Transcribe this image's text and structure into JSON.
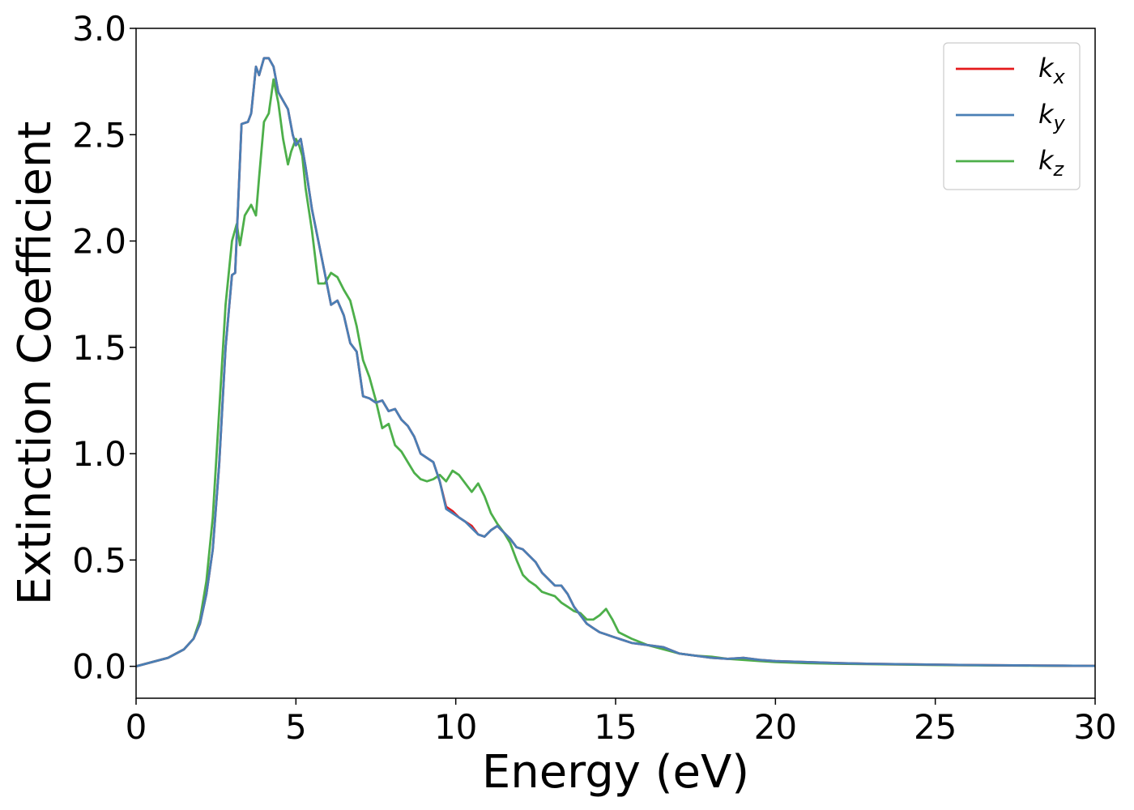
{
  "chart_data": {
    "type": "line",
    "xlabel": "Energy (eV)",
    "ylabel": "Extinction Coefficient",
    "xlim": [
      0,
      30
    ],
    "ylim": [
      -0.15,
      3.0
    ],
    "xticks": [
      0,
      5,
      10,
      15,
      20,
      25,
      30
    ],
    "xtick_labels": [
      "0",
      "5",
      "10",
      "15",
      "20",
      "25",
      "30"
    ],
    "yticks": [
      0.0,
      0.5,
      1.0,
      1.5,
      2.0,
      2.5,
      3.0
    ],
    "ytick_labels": [
      "0.0",
      "0.5",
      "1.0",
      "1.5",
      "2.0",
      "2.5",
      "3.0"
    ],
    "grid": false,
    "legend": "top-right",
    "series": [
      {
        "name": "k",
        "sub": "x",
        "color": "#e41a1c",
        "x": [
          0,
          0.5,
          1.0,
          1.5,
          1.8,
          2.0,
          2.2,
          2.4,
          2.6,
          2.8,
          3.0,
          3.1,
          3.2,
          3.3,
          3.5,
          3.6,
          3.75,
          3.85,
          4.0,
          4.15,
          4.3,
          4.45,
          4.6,
          4.75,
          4.9,
          5.0,
          5.15,
          5.3,
          5.5,
          5.7,
          5.9,
          6.1,
          6.3,
          6.5,
          6.7,
          6.9,
          7.1,
          7.3,
          7.5,
          7.7,
          7.9,
          8.1,
          8.3,
          8.5,
          8.7,
          8.9,
          9.1,
          9.3,
          9.5,
          9.7,
          9.9,
          10.1,
          10.3,
          10.5,
          10.7,
          10.9,
          11.1,
          11.3,
          11.5,
          11.7,
          11.9,
          12.1,
          12.3,
          12.5,
          12.7,
          12.9,
          13.1,
          13.3,
          13.5,
          13.7,
          13.9,
          14.1,
          14.3,
          14.5,
          14.7,
          14.9,
          15.1,
          15.5,
          16.0,
          16.5,
          17.0,
          17.5,
          18.0,
          18.5,
          19.0,
          19.5,
          20,
          21,
          22,
          23,
          24,
          25,
          26,
          27,
          28,
          29,
          30
        ],
        "y": [
          0.0,
          0.02,
          0.04,
          0.08,
          0.13,
          0.2,
          0.34,
          0.55,
          0.95,
          1.5,
          1.84,
          1.85,
          2.2,
          2.55,
          2.56,
          2.6,
          2.82,
          2.78,
          2.86,
          2.86,
          2.82,
          2.7,
          2.66,
          2.62,
          2.5,
          2.45,
          2.48,
          2.35,
          2.15,
          2.0,
          1.85,
          1.7,
          1.72,
          1.65,
          1.52,
          1.48,
          1.27,
          1.26,
          1.24,
          1.25,
          1.2,
          1.21,
          1.16,
          1.13,
          1.08,
          1.0,
          0.98,
          0.96,
          0.87,
          0.75,
          0.73,
          0.7,
          0.68,
          0.66,
          0.62,
          0.61,
          0.64,
          0.66,
          0.63,
          0.6,
          0.56,
          0.55,
          0.52,
          0.49,
          0.44,
          0.41,
          0.38,
          0.38,
          0.34,
          0.28,
          0.24,
          0.2,
          0.18,
          0.16,
          0.15,
          0.14,
          0.13,
          0.11,
          0.1,
          0.09,
          0.06,
          0.05,
          0.04,
          0.035,
          0.04,
          0.03,
          0.025,
          0.02,
          0.015,
          0.012,
          0.01,
          0.008,
          0.006,
          0.005,
          0.004,
          0.003,
          0.002
        ]
      },
      {
        "name": "k",
        "sub": "y",
        "color": "#4a7fb5",
        "x": [
          0,
          0.5,
          1.0,
          1.5,
          1.8,
          2.0,
          2.2,
          2.4,
          2.6,
          2.8,
          3.0,
          3.1,
          3.2,
          3.3,
          3.5,
          3.6,
          3.75,
          3.85,
          4.0,
          4.15,
          4.3,
          4.45,
          4.6,
          4.75,
          4.9,
          5.0,
          5.15,
          5.3,
          5.5,
          5.7,
          5.9,
          6.1,
          6.3,
          6.5,
          6.7,
          6.9,
          7.1,
          7.3,
          7.5,
          7.7,
          7.9,
          8.1,
          8.3,
          8.5,
          8.7,
          8.9,
          9.1,
          9.3,
          9.5,
          9.7,
          9.9,
          10.1,
          10.3,
          10.5,
          10.7,
          10.9,
          11.1,
          11.3,
          11.5,
          11.7,
          11.9,
          12.1,
          12.3,
          12.5,
          12.7,
          12.9,
          13.1,
          13.3,
          13.5,
          13.7,
          13.9,
          14.1,
          14.3,
          14.5,
          14.7,
          14.9,
          15.1,
          15.5,
          16.0,
          16.5,
          17.0,
          17.5,
          18.0,
          18.5,
          19.0,
          19.5,
          20,
          21,
          22,
          23,
          24,
          25,
          26,
          27,
          28,
          29,
          30
        ],
        "y": [
          0.0,
          0.02,
          0.04,
          0.08,
          0.13,
          0.2,
          0.34,
          0.55,
          0.95,
          1.5,
          1.84,
          1.85,
          2.2,
          2.55,
          2.56,
          2.6,
          2.82,
          2.78,
          2.86,
          2.86,
          2.82,
          2.7,
          2.66,
          2.62,
          2.5,
          2.45,
          2.48,
          2.35,
          2.15,
          2.0,
          1.85,
          1.7,
          1.72,
          1.65,
          1.52,
          1.48,
          1.27,
          1.26,
          1.24,
          1.25,
          1.2,
          1.21,
          1.16,
          1.13,
          1.08,
          1.0,
          0.98,
          0.96,
          0.87,
          0.74,
          0.72,
          0.7,
          0.68,
          0.65,
          0.62,
          0.61,
          0.64,
          0.66,
          0.63,
          0.6,
          0.56,
          0.55,
          0.52,
          0.49,
          0.44,
          0.41,
          0.38,
          0.38,
          0.34,
          0.28,
          0.24,
          0.2,
          0.18,
          0.16,
          0.15,
          0.14,
          0.13,
          0.11,
          0.1,
          0.09,
          0.06,
          0.05,
          0.04,
          0.035,
          0.04,
          0.03,
          0.025,
          0.02,
          0.015,
          0.012,
          0.01,
          0.008,
          0.006,
          0.005,
          0.004,
          0.003,
          0.002
        ]
      },
      {
        "name": "k",
        "sub": "z",
        "color": "#4daf4a",
        "x": [
          0,
          0.5,
          1.0,
          1.5,
          1.8,
          2.0,
          2.2,
          2.4,
          2.6,
          2.8,
          3.0,
          3.15,
          3.25,
          3.4,
          3.6,
          3.75,
          3.85,
          4.0,
          4.15,
          4.3,
          4.45,
          4.6,
          4.75,
          4.85,
          5.0,
          5.1,
          5.2,
          5.3,
          5.5,
          5.7,
          5.9,
          6.1,
          6.3,
          6.5,
          6.7,
          6.9,
          7.1,
          7.3,
          7.5,
          7.7,
          7.9,
          8.1,
          8.3,
          8.5,
          8.7,
          8.9,
          9.1,
          9.3,
          9.5,
          9.7,
          9.9,
          10.1,
          10.3,
          10.5,
          10.7,
          10.9,
          11.1,
          11.3,
          11.5,
          11.7,
          11.9,
          12.1,
          12.3,
          12.5,
          12.7,
          12.9,
          13.1,
          13.3,
          13.5,
          13.7,
          13.9,
          14.1,
          14.3,
          14.5,
          14.7,
          14.9,
          15.1,
          15.5,
          16.0,
          16.5,
          17.0,
          17.5,
          18.0,
          18.5,
          19.0,
          19.5,
          20,
          21,
          22,
          23,
          24,
          25,
          26,
          27,
          28,
          29,
          30
        ],
        "y": [
          0.0,
          0.02,
          0.04,
          0.08,
          0.13,
          0.22,
          0.4,
          0.7,
          1.2,
          1.7,
          2.0,
          2.08,
          1.98,
          2.12,
          2.17,
          2.12,
          2.3,
          2.56,
          2.6,
          2.76,
          2.65,
          2.48,
          2.36,
          2.42,
          2.48,
          2.45,
          2.4,
          2.25,
          2.05,
          1.8,
          1.8,
          1.85,
          1.83,
          1.77,
          1.72,
          1.6,
          1.44,
          1.36,
          1.25,
          1.12,
          1.14,
          1.04,
          1.01,
          0.96,
          0.91,
          0.88,
          0.87,
          0.88,
          0.9,
          0.87,
          0.92,
          0.9,
          0.86,
          0.82,
          0.86,
          0.8,
          0.72,
          0.67,
          0.63,
          0.58,
          0.5,
          0.43,
          0.4,
          0.38,
          0.35,
          0.34,
          0.33,
          0.3,
          0.28,
          0.26,
          0.25,
          0.22,
          0.22,
          0.24,
          0.27,
          0.22,
          0.16,
          0.13,
          0.1,
          0.08,
          0.06,
          0.05,
          0.045,
          0.035,
          0.03,
          0.025,
          0.02,
          0.015,
          0.012,
          0.01,
          0.008,
          0.006,
          0.005,
          0.004,
          0.003,
          0.002,
          0.002
        ]
      }
    ]
  }
}
